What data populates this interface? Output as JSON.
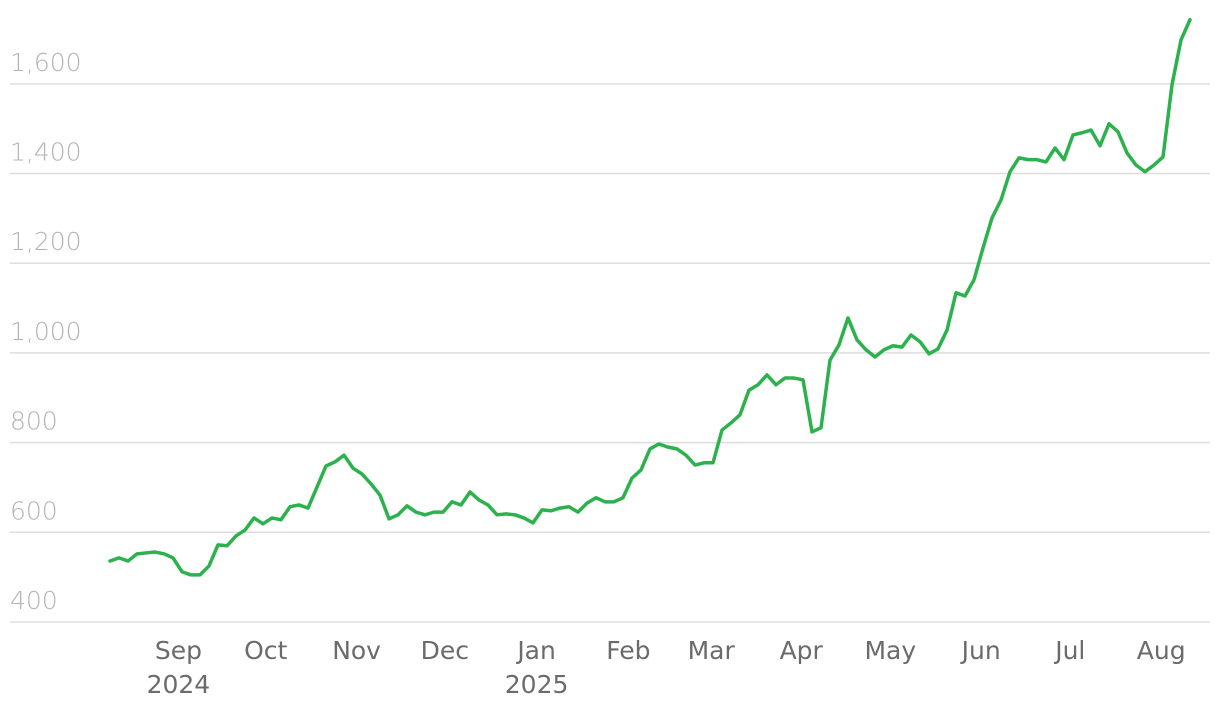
{
  "chart_data": {
    "type": "line",
    "color": "#2bb24c",
    "grid": true,
    "xlim": [
      0,
      120
    ],
    "ylim": [
      400,
      1787
    ],
    "yticks": [
      400,
      600,
      800,
      {
        "value": 1000,
        "label": "1,000"
      },
      {
        "value": 1200,
        "label": "1,200"
      },
      {
        "value": 1400,
        "label": "1,400"
      },
      {
        "value": 1600,
        "label": "1,600"
      }
    ],
    "xticks": [
      {
        "value": 7.6,
        "label": "Sep",
        "year": "2024"
      },
      {
        "value": 17.3,
        "label": "Oct"
      },
      {
        "value": 27.4,
        "label": "Nov"
      },
      {
        "value": 37.2,
        "label": "Dec"
      },
      {
        "value": 47.4,
        "label": "Jan",
        "year": "2025"
      },
      {
        "value": 57.6,
        "label": "Feb"
      },
      {
        "value": 66.8,
        "label": "Mar"
      },
      {
        "value": 76.8,
        "label": "Apr"
      },
      {
        "value": 86.7,
        "label": "May"
      },
      {
        "value": 96.8,
        "label": "Jun"
      },
      {
        "value": 106.7,
        "label": "Jul"
      },
      {
        "value": 116.8,
        "label": "Aug"
      }
    ],
    "values": [
      536,
      543,
      536,
      552,
      554,
      556,
      552,
      543,
      512,
      505,
      505,
      525,
      572,
      570,
      592,
      605,
      632,
      619,
      632,
      628,
      657,
      661,
      654,
      701,
      748,
      757,
      772,
      743,
      730,
      708,
      683,
      630,
      639,
      659,
      645,
      639,
      645,
      645,
      668,
      661,
      690,
      672,
      661,
      639,
      641,
      639,
      632,
      621,
      650,
      648,
      654,
      657,
      645,
      665,
      677,
      668,
      668,
      677,
      721,
      739,
      786,
      797,
      790,
      786,
      772,
      750,
      755,
      755,
      828,
      844,
      862,
      917,
      929,
      951,
      929,
      944,
      944,
      940,
      824,
      833,
      984,
      1018,
      1078,
      1029,
      1007,
      991,
      1007,
      1016,
      1013,
      1040,
      1025,
      998,
      1009,
      1051,
      1134,
      1127,
      1163,
      1234,
      1301,
      1341,
      1404,
      1435,
      1431,
      1431,
      1426,
      1457,
      1431,
      1486,
      1491,
      1497,
      1462,
      1511,
      1493,
      1446,
      1419,
      1404,
      1419,
      1437,
      1598,
      1698,
      1743
    ]
  }
}
